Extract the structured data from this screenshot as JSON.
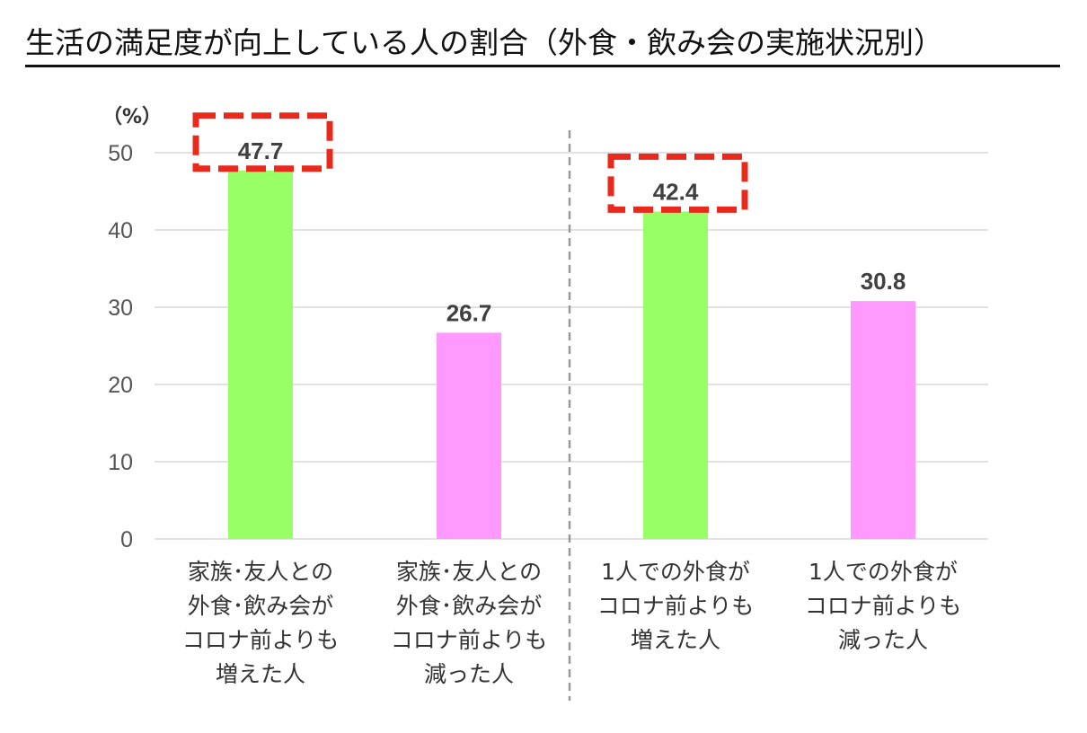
{
  "title": "生活の満足度が向上している人の割合（外食・飲み会の実施状況別）",
  "chart_data": {
    "type": "bar",
    "unit_label": "（%）",
    "ylim": [
      0,
      50
    ],
    "yticks": [
      0,
      10,
      20,
      30,
      40,
      50
    ],
    "grid": true,
    "categories": [
      "家族･友人との\n外食･飲み会が\nコロナ前よりも\n増えた人",
      "家族･友人との\n外食･飲み会が\nコロナ前よりも\n減った人",
      "1人での外食が\nコロナ前よりも\n増えた人",
      "1人での外食が\nコロナ前よりも\n減った人"
    ],
    "values": [
      47.7,
      26.7,
      42.4,
      30.8
    ],
    "value_labels": [
      "47.7",
      "26.7",
      "42.4",
      "30.8"
    ],
    "highlighted": [
      true,
      false,
      true,
      false
    ],
    "colors": {
      "increased": "#99ff66",
      "decreased": "#ff99ff",
      "highlight_box": "#e8291c",
      "grid": "#d9d9d9",
      "divider": "#999999"
    }
  }
}
